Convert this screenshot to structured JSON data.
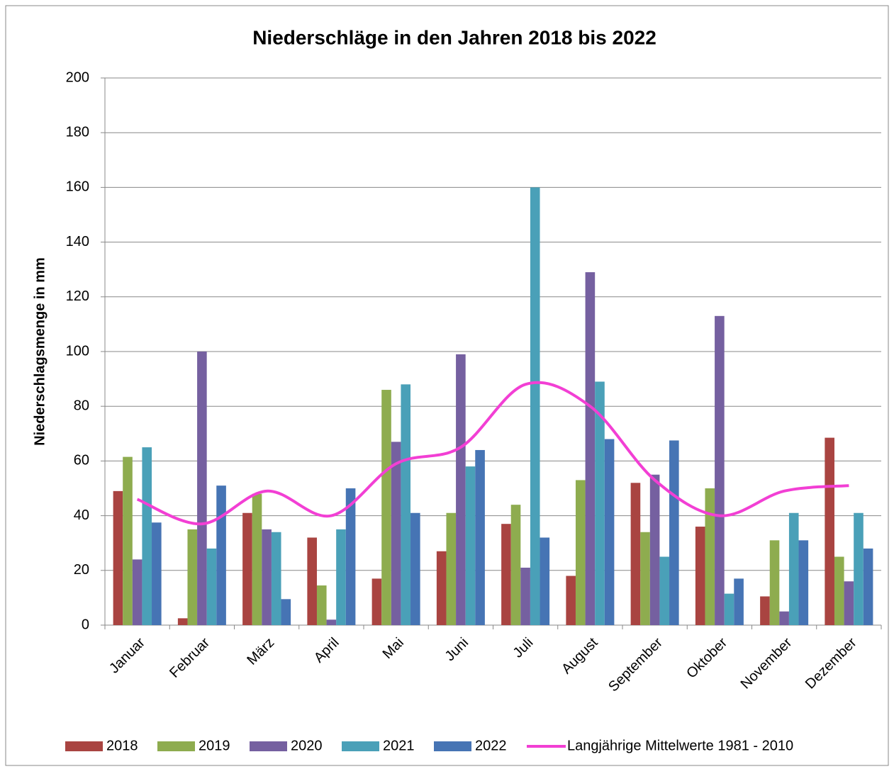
{
  "chart_data": {
    "type": "bar",
    "title": "Niederschläge in den Jahren 2018 bis 2022",
    "y_label": "Niederschlagsmenge in mm",
    "categories": [
      "Januar",
      "Februar",
      "März",
      "April",
      "Mai",
      "Juni",
      "Juli",
      "August",
      "September",
      "Oktober",
      "November",
      "Dezember"
    ],
    "series": [
      {
        "name": "2018",
        "color": "#a94441",
        "values": [
          49,
          2.5,
          41,
          32,
          17,
          27,
          37,
          18,
          52,
          36,
          10.5,
          68.5
        ]
      },
      {
        "name": "2019",
        "color": "#8eac4f",
        "values": [
          61.5,
          35,
          48,
          14.5,
          86,
          41,
          44,
          53,
          34,
          50,
          31,
          25
        ]
      },
      {
        "name": "2020",
        "color": "#7560a0",
        "values": [
          24,
          100,
          35,
          2,
          67,
          99,
          21,
          129,
          55,
          113,
          5,
          16
        ]
      },
      {
        "name": "2021",
        "color": "#4aa0b8",
        "values": [
          65,
          28,
          34,
          35,
          88,
          58,
          160,
          89,
          25,
          11.5,
          41,
          41
        ]
      },
      {
        "name": "2022",
        "color": "#4674b4",
        "values": [
          37.5,
          51,
          9.5,
          50,
          41,
          64,
          32,
          68,
          67.5,
          17,
          31,
          28
        ]
      },
      {
        "name": "Langjährige Mittelwerte 1981 - 2010",
        "color": "#f23fd4",
        "type": "line",
        "smooth": true,
        "values": [
          46,
          37,
          49,
          40,
          59,
          65,
          88,
          80,
          53,
          40,
          49,
          51
        ]
      }
    ],
    "ylim": [
      0,
      200
    ],
    "yticks": [
      0,
      20,
      40,
      60,
      80,
      100,
      120,
      140,
      160,
      180,
      200
    ],
    "grid": true,
    "legend": "bottom"
  }
}
